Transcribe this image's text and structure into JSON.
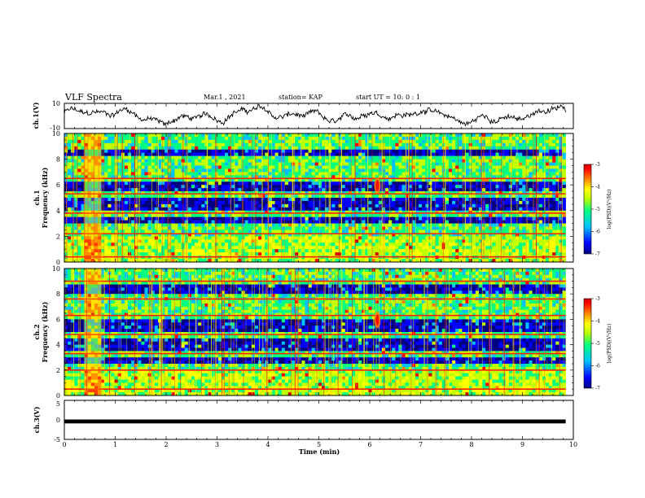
{
  "header": {
    "title": "VLF Spectra",
    "date": "Mar.1 , 2021",
    "station": "station= KAP",
    "start_ut": "start UT = 10: 0 : 1"
  },
  "colors": {
    "frame": "#000000",
    "trace": "#000000",
    "colormap": [
      "#000080",
      "#0000ff",
      "#00c0ff",
      "#00ff80",
      "#c0ff00",
      "#ffff00",
      "#ff8000",
      "#ff0000",
      "#d00000"
    ]
  },
  "chart_data": [
    {
      "type": "line",
      "panel": "ch1-waveform",
      "ylabel": "ch.1(V)",
      "ylim": [
        -10,
        10
      ],
      "yticks": [
        "10",
        "-10"
      ],
      "xlim": [
        0,
        10
      ],
      "trace_range_min": [
        -8.5,
        9
      ],
      "trace_span_min": [
        0,
        9.85
      ]
    },
    {
      "type": "heatmap",
      "panel": "ch1-spectrogram",
      "ylabel": "ch.1\nFrequency (kHz)",
      "ylim": [
        0,
        10
      ],
      "yticks": [
        "0",
        "2",
        "4",
        "6",
        "8",
        "10"
      ],
      "xlim": [
        0,
        10
      ],
      "colorbar": {
        "label": "log(PSD)(V²/Hz)",
        "ticks": [
          "-3",
          "-4",
          "-5",
          "-6",
          "-7"
        ],
        "range": [
          -7,
          -3
        ]
      },
      "features": {
        "strong_lines_khz": [
          0.4,
          2.2,
          3.8,
          5.3,
          6.5
        ],
        "dark_bands_khz": [
          [
            2.9,
            3.4
          ],
          [
            4.1,
            4.9
          ],
          [
            5.6,
            6.3
          ],
          [
            8.2,
            8.8
          ]
        ],
        "burst_min": [
          0.38,
          0.75
        ],
        "emission": {
          "time_min": 6.15,
          "freq_khz": [
            5.3,
            6.6
          ]
        }
      }
    },
    {
      "type": "heatmap",
      "panel": "ch2-spectrogram",
      "ylabel": "ch.2\nFrequency (kHz)",
      "ylim": [
        0,
        10
      ],
      "yticks": [
        "0",
        "2",
        "4",
        "6",
        "8",
        "10"
      ],
      "xlim": [
        0,
        10
      ],
      "colorbar": {
        "label": "log(PSD)(V²/Hz)",
        "ticks": [
          "-3",
          "-4",
          "-5",
          "-6",
          "-7"
        ],
        "range": [
          -7,
          -3
        ]
      },
      "features": {
        "strong_lines_khz": [
          0.5,
          2.0,
          3.3,
          4.8,
          6.3,
          7.6,
          9.0
        ],
        "dark_bands_khz": [
          [
            2.4,
            3.1
          ],
          [
            3.6,
            4.6
          ],
          [
            5.1,
            6.0
          ],
          [
            8.0,
            8.7
          ]
        ],
        "burst_min": [
          0.38,
          0.75
        ],
        "emission": {
          "time_min": 6.15,
          "freq_khz": [
            5.3,
            6.6
          ]
        }
      }
    },
    {
      "type": "line",
      "panel": "ch3-waveform",
      "ylabel": "ch.3(V)",
      "ylim": [
        -5,
        5
      ],
      "yticks": [
        "5",
        "0",
        "-5"
      ],
      "xlim": [
        0,
        10
      ],
      "xlabel": "Time (min)",
      "xticks": [
        "0",
        "1",
        "2",
        "3",
        "4",
        "5",
        "6",
        "7",
        "8",
        "9",
        "10"
      ],
      "trace_level_v": -0.4,
      "trace_width_v": 1.0,
      "trace_span_min": [
        0,
        9.85
      ]
    }
  ]
}
